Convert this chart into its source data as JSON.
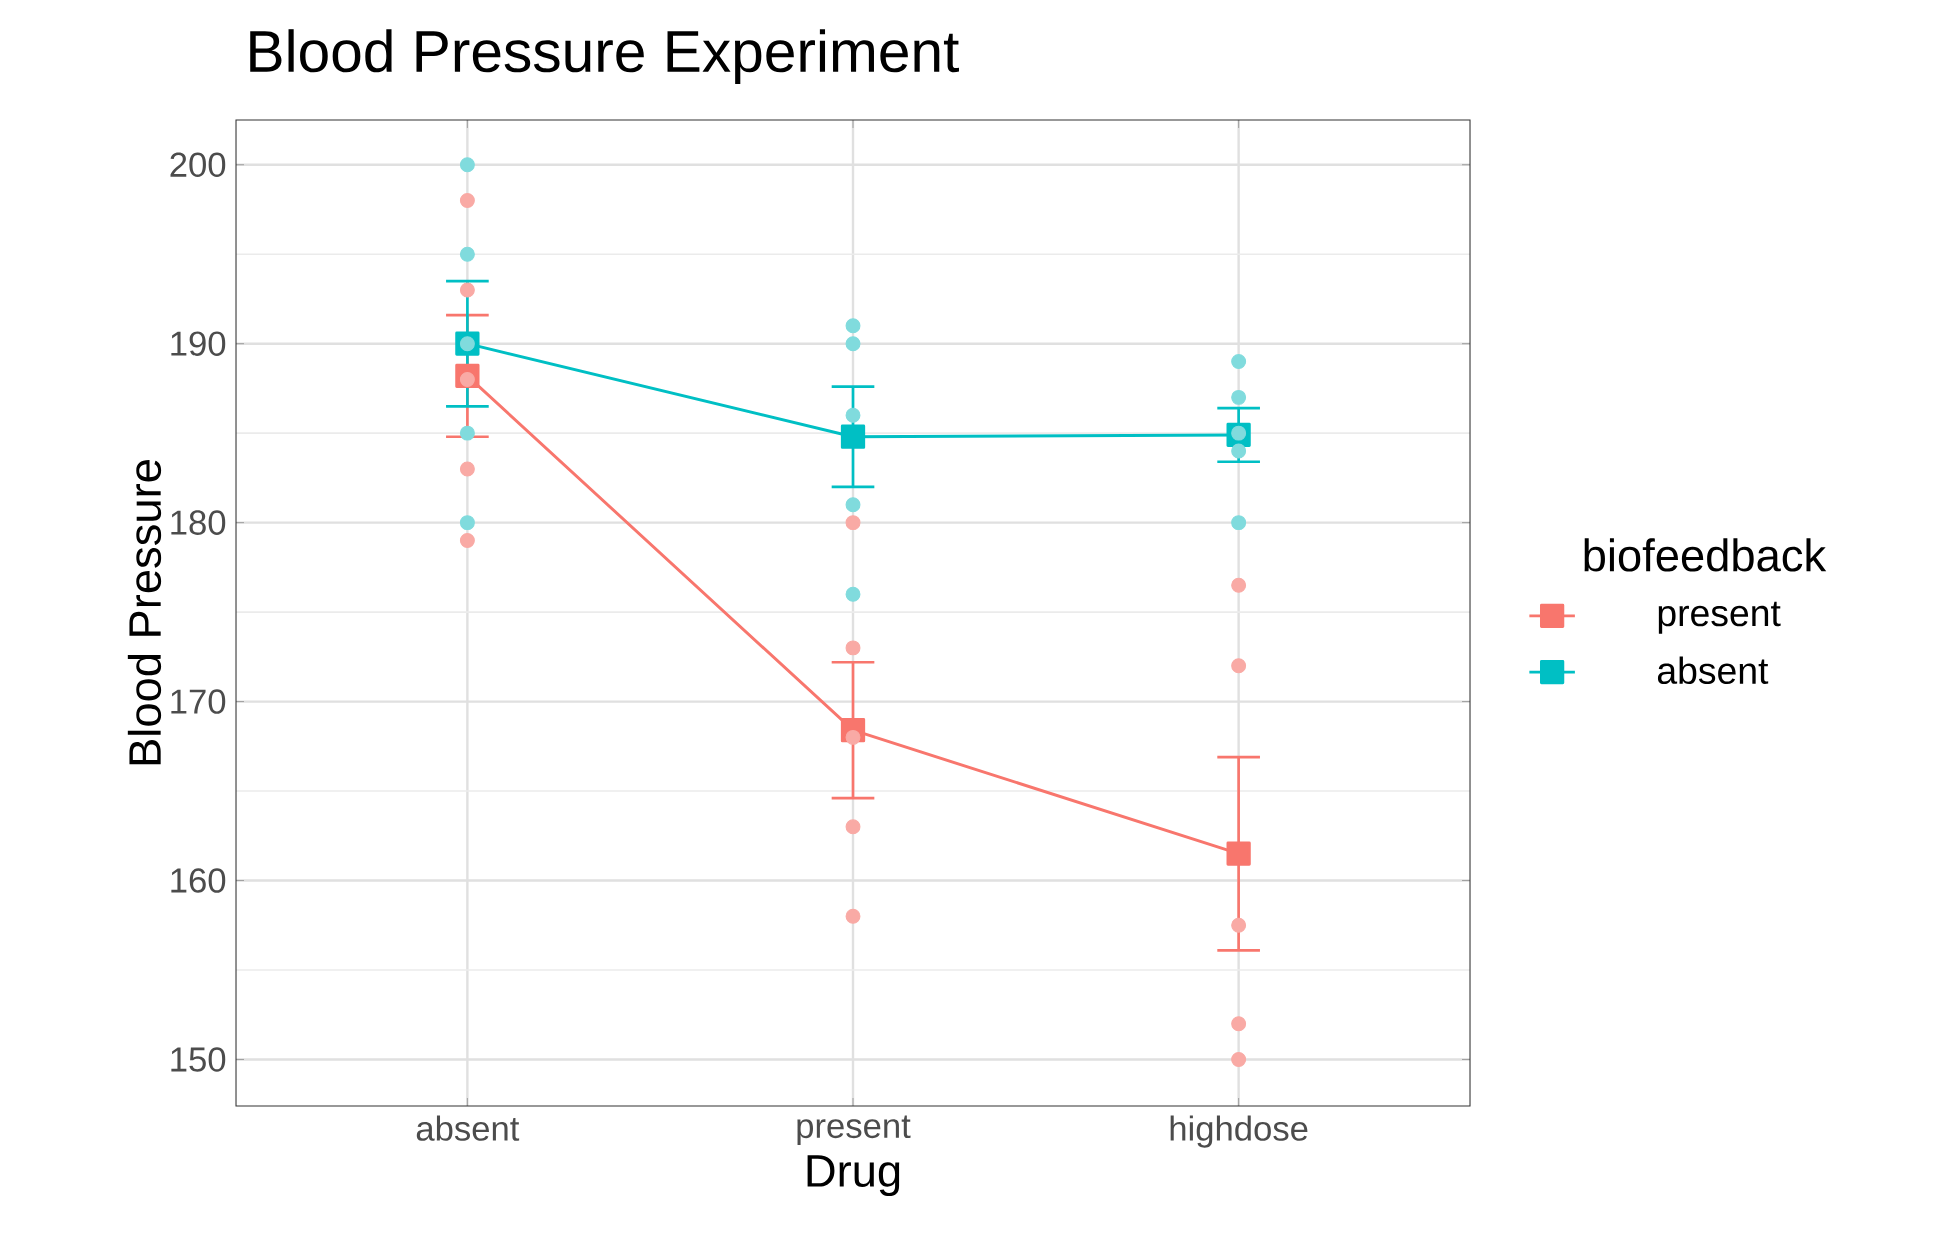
{
  "chart_data": {
    "type": "line",
    "title": "Blood Pressure Experiment",
    "xlabel": "Drug",
    "ylabel": "Blood Pressure",
    "legend_title": "biofeedback",
    "categories": [
      "absent",
      "present",
      "highdose"
    ],
    "series": [
      {
        "name": "present",
        "color": "#f8766d",
        "values": [
          188.2,
          168.4,
          161.5
        ],
        "errors": [
          3.4,
          3.8,
          5.4
        ],
        "marker": "square"
      },
      {
        "name": "absent",
        "color": "#00bfc4",
        "values": [
          190,
          184.8,
          184.9
        ],
        "errors": [
          3.5,
          2.8,
          1.5
        ],
        "marker": "square"
      },
      {
        "type": "scatter",
        "color": "#f9aaa5",
        "x": [
          "absent",
          "absent",
          "absent",
          "absent",
          "absent",
          "present",
          "present",
          "present",
          "present",
          "present",
          "highdose",
          "highdose",
          "highdose",
          "highdose",
          "highdose"
        ],
        "values": [
          198,
          193,
          188,
          183,
          179,
          180,
          173,
          168,
          163,
          158,
          176.5,
          172,
          157.5,
          152,
          150
        ],
        "marker": "circle"
      },
      {
        "type": "scatter",
        "color": "#80dbdd",
        "x": [
          "absent",
          "absent",
          "absent",
          "absent",
          "absent",
          "present",
          "present",
          "present",
          "present",
          "present",
          "highdose",
          "highdose",
          "highdose",
          "highdose",
          "highdose"
        ],
        "values": [
          200,
          195,
          190,
          185,
          180,
          191,
          190,
          186,
          181,
          176,
          189,
          187,
          185,
          184,
          180
        ],
        "marker": "circle"
      }
    ],
    "ylim": [
      147.4,
      202.5
    ],
    "yticks": [
      150,
      160,
      170,
      180,
      190,
      200
    ],
    "grid": true,
    "legend": "right"
  }
}
